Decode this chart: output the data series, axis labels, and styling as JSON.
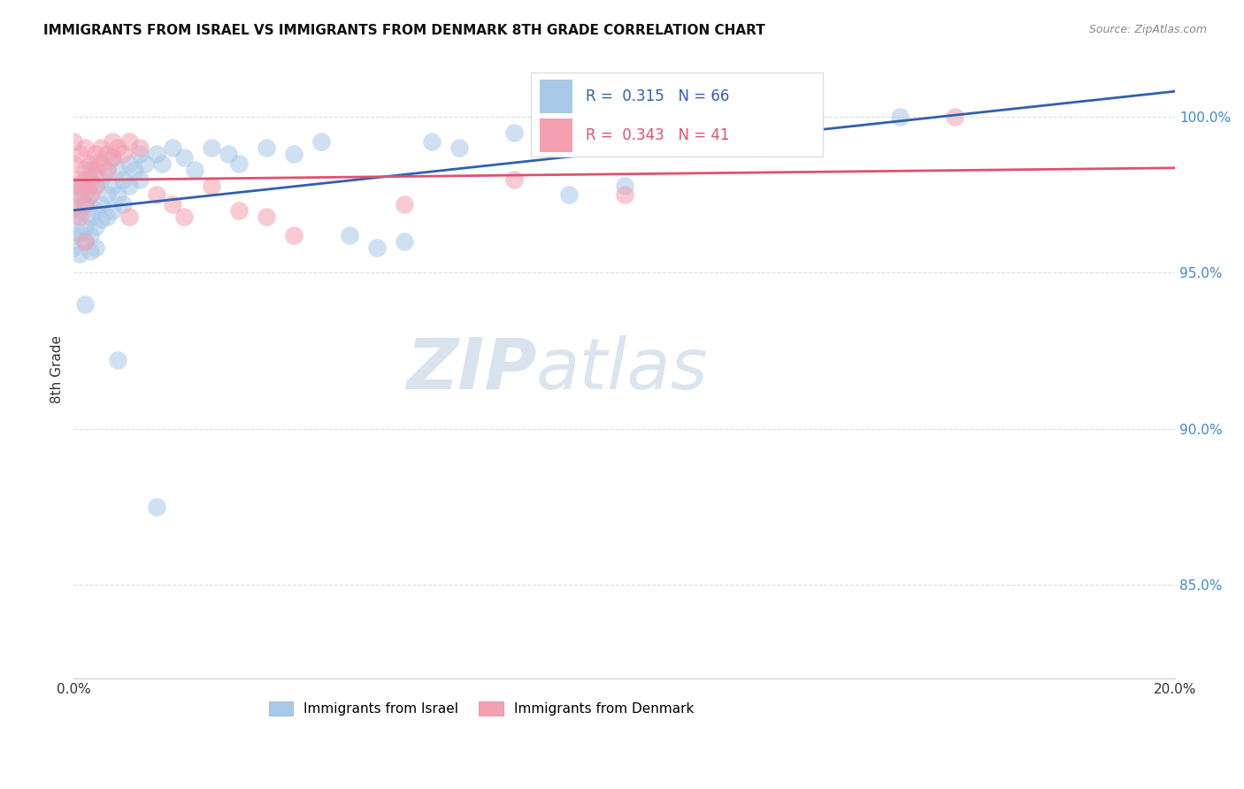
{
  "title": "IMMIGRANTS FROM ISRAEL VS IMMIGRANTS FROM DENMARK 8TH GRADE CORRELATION CHART",
  "source": "Source: ZipAtlas.com",
  "ylabel": "8th Grade",
  "ytick_labels": [
    "100.0%",
    "95.0%",
    "90.0%",
    "85.0%"
  ],
  "ytick_values": [
    1.0,
    0.95,
    0.9,
    0.85
  ],
  "xmin": 0.0,
  "xmax": 0.2,
  "ymin": 0.82,
  "ymax": 1.018,
  "israel_R": 0.315,
  "israel_N": 66,
  "denmark_R": 0.343,
  "denmark_N": 41,
  "israel_color": "#a8c8e8",
  "denmark_color": "#f4a0b0",
  "israel_line_color": "#3060b0",
  "denmark_line_color": "#e05070",
  "israel_scatter": [
    [
      0.0,
      0.962
    ],
    [
      0.0,
      0.968
    ],
    [
      0.0,
      0.975
    ],
    [
      0.0,
      0.958
    ],
    [
      0.001,
      0.97
    ],
    [
      0.001,
      0.963
    ],
    [
      0.001,
      0.978
    ],
    [
      0.001,
      0.956
    ],
    [
      0.002,
      0.972
    ],
    [
      0.002,
      0.965
    ],
    [
      0.002,
      0.98
    ],
    [
      0.002,
      0.96
    ],
    [
      0.002,
      0.975
    ],
    [
      0.003,
      0.968
    ],
    [
      0.003,
      0.975
    ],
    [
      0.003,
      0.983
    ],
    [
      0.003,
      0.962
    ],
    [
      0.003,
      0.957
    ],
    [
      0.004,
      0.97
    ],
    [
      0.004,
      0.978
    ],
    [
      0.004,
      0.965
    ],
    [
      0.004,
      0.985
    ],
    [
      0.004,
      0.958
    ],
    [
      0.005,
      0.972
    ],
    [
      0.005,
      0.98
    ],
    [
      0.005,
      0.967
    ],
    [
      0.006,
      0.975
    ],
    [
      0.006,
      0.983
    ],
    [
      0.006,
      0.968
    ],
    [
      0.007,
      0.978
    ],
    [
      0.007,
      0.97
    ],
    [
      0.007,
      0.987
    ],
    [
      0.008,
      0.975
    ],
    [
      0.008,
      0.983
    ],
    [
      0.009,
      0.98
    ],
    [
      0.009,
      0.972
    ],
    [
      0.01,
      0.978
    ],
    [
      0.01,
      0.985
    ],
    [
      0.011,
      0.983
    ],
    [
      0.012,
      0.98
    ],
    [
      0.012,
      0.988
    ],
    [
      0.013,
      0.985
    ],
    [
      0.015,
      0.988
    ],
    [
      0.016,
      0.985
    ],
    [
      0.018,
      0.99
    ],
    [
      0.02,
      0.987
    ],
    [
      0.022,
      0.983
    ],
    [
      0.025,
      0.99
    ],
    [
      0.028,
      0.988
    ],
    [
      0.03,
      0.985
    ],
    [
      0.035,
      0.99
    ],
    [
      0.04,
      0.988
    ],
    [
      0.045,
      0.992
    ],
    [
      0.05,
      0.962
    ],
    [
      0.055,
      0.958
    ],
    [
      0.06,
      0.96
    ],
    [
      0.065,
      0.992
    ],
    [
      0.07,
      0.99
    ],
    [
      0.08,
      0.995
    ],
    [
      0.09,
      0.975
    ],
    [
      0.1,
      0.978
    ],
    [
      0.11,
      0.997
    ],
    [
      0.15,
      1.0
    ],
    [
      0.002,
      0.94
    ],
    [
      0.008,
      0.922
    ],
    [
      0.015,
      0.875
    ]
  ],
  "denmark_scatter": [
    [
      0.0,
      0.978
    ],
    [
      0.0,
      0.985
    ],
    [
      0.0,
      0.971
    ],
    [
      0.0,
      0.992
    ],
    [
      0.001,
      0.98
    ],
    [
      0.001,
      0.975
    ],
    [
      0.001,
      0.988
    ],
    [
      0.001,
      0.968
    ],
    [
      0.002,
      0.983
    ],
    [
      0.002,
      0.978
    ],
    [
      0.002,
      0.99
    ],
    [
      0.002,
      0.972
    ],
    [
      0.003,
      0.985
    ],
    [
      0.003,
      0.98
    ],
    [
      0.003,
      0.975
    ],
    [
      0.004,
      0.988
    ],
    [
      0.004,
      0.983
    ],
    [
      0.004,
      0.978
    ],
    [
      0.005,
      0.99
    ],
    [
      0.005,
      0.985
    ],
    [
      0.006,
      0.988
    ],
    [
      0.006,
      0.983
    ],
    [
      0.007,
      0.992
    ],
    [
      0.007,
      0.987
    ],
    [
      0.008,
      0.99
    ],
    [
      0.009,
      0.988
    ],
    [
      0.01,
      0.992
    ],
    [
      0.012,
      0.99
    ],
    [
      0.015,
      0.975
    ],
    [
      0.018,
      0.972
    ],
    [
      0.02,
      0.968
    ],
    [
      0.025,
      0.978
    ],
    [
      0.03,
      0.97
    ],
    [
      0.035,
      0.968
    ],
    [
      0.04,
      0.962
    ],
    [
      0.06,
      0.972
    ],
    [
      0.08,
      0.98
    ],
    [
      0.1,
      0.975
    ],
    [
      0.16,
      1.0
    ],
    [
      0.002,
      0.96
    ],
    [
      0.01,
      0.968
    ]
  ],
  "watermark_zip": "ZIP",
  "watermark_atlas": "atlas",
  "background_color": "#ffffff",
  "grid_color": "#dddddd"
}
